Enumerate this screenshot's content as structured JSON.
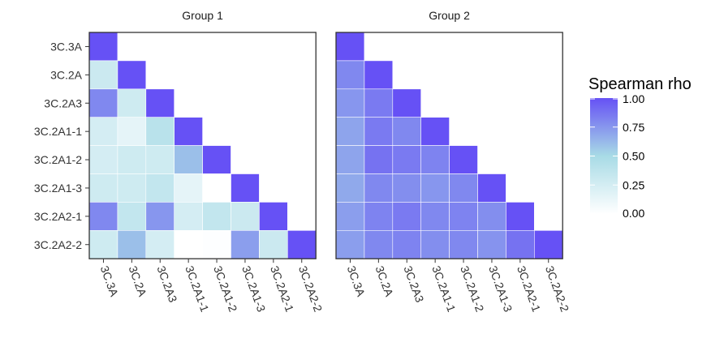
{
  "chart_data": {
    "type": "heatmap",
    "labels": [
      "3C.3A",
      "3C.2A",
      "3C.2A3",
      "3C.2A1-1",
      "3C.2A1-2",
      "3C.2A1-3",
      "3C.2A2-1",
      "3C.2A2-2"
    ],
    "panels": [
      {
        "name": "Group 1",
        "matrix": [
          [
            1.0
          ],
          [
            0.3,
            1.0
          ],
          [
            0.8,
            0.28,
            1.0
          ],
          [
            0.25,
            0.15,
            0.4,
            1.0
          ],
          [
            0.25,
            0.28,
            0.28,
            0.6,
            1.0
          ],
          [
            0.28,
            0.28,
            0.35,
            0.15,
            0.0,
            1.0
          ],
          [
            0.8,
            0.35,
            0.75,
            0.25,
            0.35,
            0.3,
            1.0
          ],
          [
            0.28,
            0.6,
            0.25,
            0.0,
            0.01,
            0.72,
            0.3,
            1.0
          ]
        ]
      },
      {
        "name": "Group 2",
        "matrix": [
          [
            1.0
          ],
          [
            0.8,
            1.0
          ],
          [
            0.75,
            0.85,
            1.0
          ],
          [
            0.7,
            0.85,
            0.8,
            1.0
          ],
          [
            0.7,
            0.88,
            0.85,
            0.82,
            1.0
          ],
          [
            0.68,
            0.8,
            0.78,
            0.75,
            0.8,
            1.0
          ],
          [
            0.72,
            0.82,
            0.85,
            0.8,
            0.82,
            0.78,
            1.0
          ],
          [
            0.72,
            0.8,
            0.82,
            0.78,
            0.8,
            0.76,
            0.88,
            1.0
          ]
        ]
      }
    ],
    "legend": {
      "title": "Spearman rho",
      "breaks": [
        1.0,
        0.75,
        0.5,
        0.25,
        0.0
      ],
      "break_labels": [
        "1.00",
        "0.75",
        "0.50",
        "0.25",
        "0.00"
      ],
      "placement": "right"
    },
    "color_scale": {
      "low": "#ffffff",
      "mid": "#a8dbe6",
      "high": "#6651f5",
      "limits": [
        0,
        1
      ]
    },
    "grid": false
  }
}
